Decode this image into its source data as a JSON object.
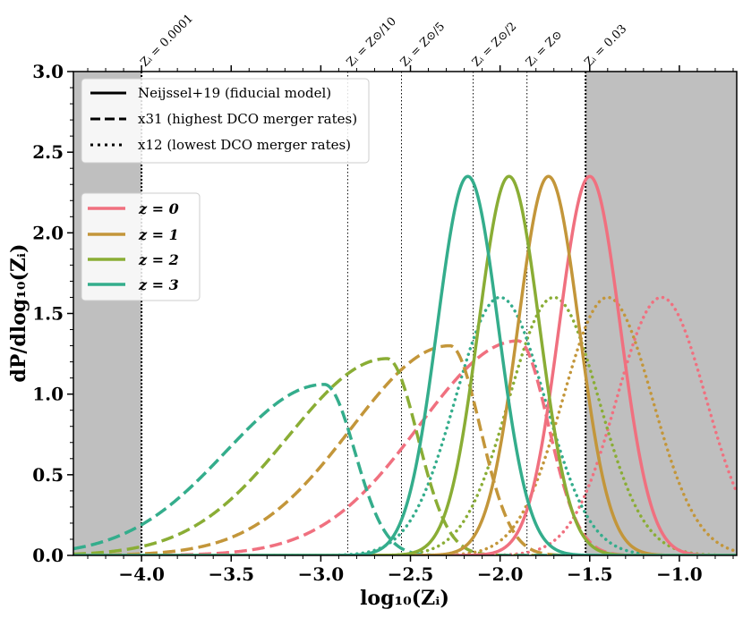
{
  "chart_data": {
    "type": "line",
    "title": "",
    "xlabel": "log₁₀(Zᵢ)",
    "ylabel": "dP/dlog₁₀(Zᵢ)",
    "xlim": [
      -4.38,
      -0.68
    ],
    "ylim": [
      0.0,
      3.0
    ],
    "xticks": [
      -4.0,
      -3.5,
      -3.0,
      -2.5,
      -2.0,
      -1.5,
      -1.0
    ],
    "xtick_labels": [
      "−4.0",
      "−3.5",
      "−3.0",
      "−2.5",
      "−2.0",
      "−1.5",
      "−1.0"
    ],
    "yticks": [
      0.0,
      0.5,
      1.0,
      1.5,
      2.0,
      2.5,
      3.0
    ],
    "ytick_labels": [
      "0.0",
      "0.5",
      "1.0",
      "1.5",
      "2.0",
      "2.5",
      "3.0"
    ],
    "shaded_regions": [
      {
        "from": -4.38,
        "to": -4.0,
        "color": "#bfbfbf"
      },
      {
        "from": -1.523,
        "to": -0.68,
        "color": "#bfbfbf"
      }
    ],
    "reference_lines": [
      {
        "x": -4.0,
        "label": "Zᵢ = 0.0001",
        "style": "bold-dotted"
      },
      {
        "x": -2.85,
        "label": "Zᵢ = Z⊙/10",
        "style": "thin-dotted"
      },
      {
        "x": -2.55,
        "label": "Zᵢ = Z⊙/5",
        "style": "thin-dotted"
      },
      {
        "x": -2.15,
        "label": "Zᵢ = Z⊙/2",
        "style": "thin-dotted"
      },
      {
        "x": -1.85,
        "label": "Zᵢ = Z⊙",
        "style": "thin-dotted"
      },
      {
        "x": -1.523,
        "label": "Zᵢ = 0.03",
        "style": "bold-dotted"
      }
    ],
    "redshifts": [
      {
        "name": "z = 0",
        "color": "#f0707f"
      },
      {
        "name": "z = 1",
        "color": "#c3963a"
      },
      {
        "name": "z = 2",
        "color": "#8aad35"
      },
      {
        "name": "z = 3",
        "color": "#34ad8c"
      }
    ],
    "models": [
      {
        "name": "Neijssel+19 (fiducial model)",
        "dash": "solid"
      },
      {
        "name": "x31 (highest DCO merger rates)",
        "dash": "dashed"
      },
      {
        "name": "x12 (lowest DCO merger rates)",
        "dash": "dotted"
      }
    ],
    "series": [
      {
        "model": "Neijssel+19 (fiducial model)",
        "redshift": "z = 0",
        "shape": "gaussian",
        "peak_x": -1.5,
        "peak_y": 2.35,
        "sigma": 0.17
      },
      {
        "model": "Neijssel+19 (fiducial model)",
        "redshift": "z = 1",
        "shape": "gaussian",
        "peak_x": -1.73,
        "peak_y": 2.35,
        "sigma": 0.17
      },
      {
        "model": "Neijssel+19 (fiducial model)",
        "redshift": "z = 2",
        "shape": "gaussian",
        "peak_x": -1.95,
        "peak_y": 2.35,
        "sigma": 0.17
      },
      {
        "model": "Neijssel+19 (fiducial model)",
        "redshift": "z = 3",
        "shape": "gaussian",
        "peak_x": -2.18,
        "peak_y": 2.35,
        "sigma": 0.17
      },
      {
        "model": "x31 (highest DCO merger rates)",
        "redshift": "z = 0",
        "shape": "skewed",
        "peak_x": -1.9,
        "peak_y": 1.33,
        "sigma_left": 0.55,
        "sigma_right": 0.17
      },
      {
        "model": "x31 (highest DCO merger rates)",
        "redshift": "z = 1",
        "shape": "skewed",
        "peak_x": -2.28,
        "peak_y": 1.3,
        "sigma_left": 0.55,
        "sigma_right": 0.17
      },
      {
        "model": "x31 (highest DCO merger rates)",
        "redshift": "z = 2",
        "shape": "skewed",
        "peak_x": -2.63,
        "peak_y": 1.22,
        "sigma_left": 0.55,
        "sigma_right": 0.17
      },
      {
        "model": "x31 (highest DCO merger rates)",
        "redshift": "z = 3",
        "shape": "skewed",
        "peak_x": -2.98,
        "peak_y": 1.06,
        "sigma_left": 0.55,
        "sigma_right": 0.17
      },
      {
        "model": "x12 (lowest DCO merger rates)",
        "redshift": "z = 0",
        "shape": "gaussian",
        "peak_x": -1.1,
        "peak_y": 1.6,
        "sigma": 0.25
      },
      {
        "model": "x12 (lowest DCO merger rates)",
        "redshift": "z = 1",
        "shape": "gaussian",
        "peak_x": -1.4,
        "peak_y": 1.6,
        "sigma": 0.25
      },
      {
        "model": "x12 (lowest DCO merger rates)",
        "redshift": "z = 2",
        "shape": "gaussian",
        "peak_x": -1.7,
        "peak_y": 1.6,
        "sigma": 0.25
      },
      {
        "model": "x12 (lowest DCO merger rates)",
        "redshift": "z = 3",
        "shape": "gaussian",
        "peak_x": -2.0,
        "peak_y": 1.6,
        "sigma": 0.25
      }
    ]
  }
}
